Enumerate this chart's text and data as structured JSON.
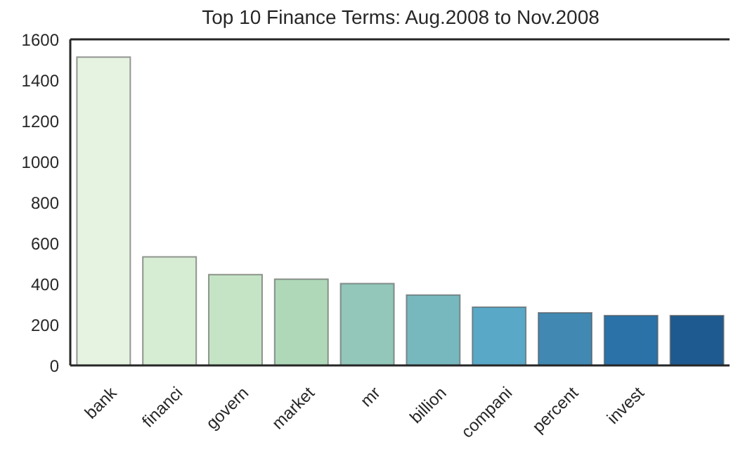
{
  "chart_data": {
    "type": "bar",
    "title": "Top 10 Finance Terms: Aug.2008 to Nov.2008",
    "categories": [
      "bank",
      "financi",
      "govern",
      "market",
      "mr",
      "billion",
      "compani",
      "percent",
      "invest",
      null
    ],
    "values": [
      1513,
      533,
      446,
      423,
      402,
      346,
      286,
      259,
      245,
      245
    ],
    "colors": [
      "#e5f3e0",
      "#d6ecd3",
      "#c5e4c5",
      "#afd8b9",
      "#92c7ba",
      "#77b8be",
      "#5aa8c7",
      "#4189b3",
      "#2a72a8",
      "#1e5a8f"
    ],
    "ylim": [
      0,
      1600
    ],
    "yticks": [
      0,
      200,
      400,
      600,
      800,
      1000,
      1200,
      1400,
      1600
    ],
    "grid": false,
    "legend": false
  }
}
